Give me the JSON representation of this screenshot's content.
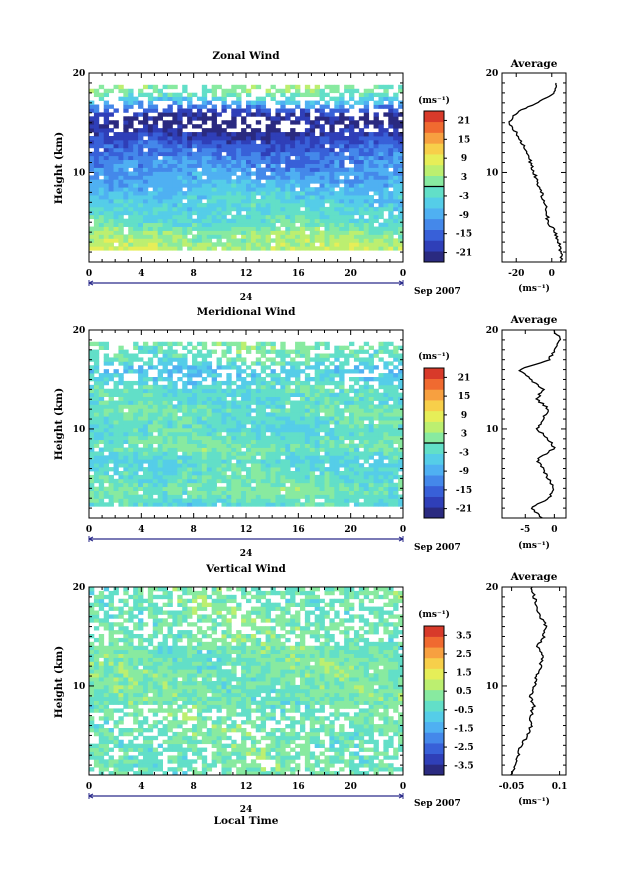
{
  "figure": {
    "x_tick_labels": [
      "0",
      "4",
      "8",
      "12",
      "16",
      "20",
      "0"
    ],
    "date_day": "24",
    "date_month_year": "Sep 2007",
    "xlabel": "Local Time",
    "ylabel": "Height (km)",
    "colorbar_unit": "(ms⁻¹)",
    "average_title": "Average",
    "average_xlabel": "(ms⁻¹)"
  },
  "colormap": [
    "#2a2a80",
    "#2f3fb8",
    "#3860d8",
    "#4488ea",
    "#4fb0f2",
    "#55cde8",
    "#62dfc8",
    "#88eaa0",
    "#bcef70",
    "#e6ee58",
    "#f7cf4a",
    "#f7a040",
    "#f06a30",
    "#d83a2a"
  ],
  "chart_data": [
    {
      "type": "heatmap",
      "title": "Zonal Wind",
      "xlabel": "",
      "ylabel": "Height (km)",
      "x_range": [
        0,
        24
      ],
      "y_range": [
        1,
        20
      ],
      "y_ticks": [
        10,
        20
      ],
      "colorbar": {
        "unit": "(ms⁻¹)",
        "min": -24,
        "max": 24,
        "ticks": [
          21,
          15,
          9,
          3,
          -3,
          -9,
          -15,
          -21
        ],
        "zero_line": true
      },
      "valid_height_range": [
        2,
        19
      ],
      "profile": {
        "heights": [
          1,
          2,
          3,
          4,
          5,
          6,
          7,
          8,
          9,
          10,
          11,
          12,
          13,
          14,
          15,
          16,
          17,
          18,
          19
        ],
        "values": [
          6,
          5,
          4,
          2,
          -2,
          -3,
          -4,
          -6,
          -8,
          -10,
          -12,
          -14,
          -17,
          -20,
          -24,
          -20,
          -8,
          1,
          3
        ]
      },
      "average": {
        "title": "Average",
        "xlabel": "(ms⁻¹)",
        "x_ticks": [
          -20,
          0
        ],
        "x_range": [
          -28,
          8
        ],
        "y_range": [
          1,
          20
        ]
      }
    },
    {
      "type": "heatmap",
      "title": "Meridional Wind",
      "xlabel": "",
      "ylabel": "Height (km)",
      "x_range": [
        0,
        24
      ],
      "y_range": [
        1,
        20
      ],
      "y_ticks": [
        10,
        20
      ],
      "colorbar": {
        "unit": "(ms⁻¹)",
        "min": -24,
        "max": 24,
        "ticks": [
          21,
          15,
          9,
          3,
          -3,
          -9,
          -15,
          -21
        ],
        "zero_line": true
      },
      "valid_height_range": [
        2,
        19
      ],
      "profile": {
        "heights": [
          1,
          2,
          3,
          4,
          5,
          6,
          7,
          8,
          9,
          10,
          11,
          12,
          13,
          14,
          15,
          16,
          17,
          18,
          19,
          20
        ],
        "values": [
          -2,
          -4,
          -1,
          0,
          -1,
          -2,
          -3,
          0,
          -1,
          -3,
          -2,
          -1,
          -3,
          -2,
          -4,
          -6,
          -1,
          0,
          1,
          0
        ]
      },
      "average": {
        "title": "Average",
        "xlabel": "(ms⁻¹)",
        "x_ticks": [
          -5,
          0
        ],
        "x_range": [
          -9,
          2
        ],
        "y_range": [
          1,
          20
        ]
      }
    },
    {
      "type": "heatmap",
      "title": "Vertical Wind",
      "xlabel": "Local Time",
      "ylabel": "Height (km)",
      "x_range": [
        0,
        24
      ],
      "y_range": [
        1,
        20
      ],
      "y_ticks": [
        10,
        20
      ],
      "colorbar": {
        "unit": "(ms⁻¹)",
        "min": -4,
        "max": 4,
        "ticks": [
          3.5,
          2.5,
          1.5,
          0.5,
          -0.5,
          -1.5,
          -2.5,
          -3.5
        ],
        "zero_line": false
      },
      "valid_height_range": [
        1,
        20
      ],
      "profile": {
        "heights": [
          1,
          2,
          3,
          4,
          5,
          6,
          7,
          8,
          9,
          10,
          11,
          12,
          13,
          14,
          15,
          16,
          17,
          18,
          19,
          20
        ],
        "values": [
          -0.05,
          -0.04,
          -0.03,
          -0.02,
          0.0,
          0.01,
          0.01,
          0.02,
          0.01,
          0.02,
          0.03,
          0.04,
          0.05,
          0.03,
          0.05,
          0.06,
          0.04,
          0.03,
          0.02,
          0.01
        ]
      },
      "average": {
        "title": "Average",
        "xlabel": "(ms⁻¹)",
        "x_ticks": [
          -0.05,
          0.1
        ],
        "x_range": [
          -0.08,
          0.12
        ],
        "y_range": [
          1,
          20
        ]
      }
    }
  ]
}
